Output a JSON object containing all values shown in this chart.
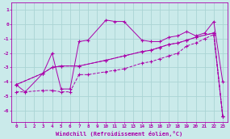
{
  "xlabel": "Windchill (Refroidissement éolien,°C)",
  "bg_color": "#caeaea",
  "line_color": "#aa00aa",
  "grid_color": "#aad4d4",
  "xlim": [
    -0.5,
    23.5
  ],
  "ylim": [
    -6.8,
    1.5
  ],
  "xticks": [
    0,
    1,
    2,
    3,
    4,
    5,
    6,
    7,
    8,
    9,
    10,
    11,
    12,
    13,
    14,
    15,
    16,
    17,
    18,
    19,
    20,
    21,
    22,
    23
  ],
  "yticks": [
    1,
    0,
    -1,
    -2,
    -3,
    -4,
    -5,
    -6
  ],
  "line1_x": [
    0,
    1,
    3,
    4,
    5,
    6,
    7,
    8,
    10,
    11,
    12,
    14,
    15,
    16,
    17,
    18,
    19,
    20,
    21,
    22,
    23
  ],
  "line1_y": [
    -4.2,
    -4.7,
    -3.4,
    -2.0,
    -4.5,
    -4.5,
    -1.2,
    -1.1,
    0.3,
    0.2,
    0.2,
    -1.1,
    -1.2,
    -1.2,
    -0.9,
    -0.8,
    -0.5,
    -0.8,
    -0.6,
    0.2,
    -4.0
  ],
  "line2_x": [
    0,
    3,
    4,
    5,
    7,
    10,
    12,
    14,
    15,
    16,
    17,
    18,
    19,
    20,
    22,
    23
  ],
  "line2_y": [
    -4.2,
    -3.4,
    -3.0,
    -2.9,
    -2.9,
    -2.5,
    -2.2,
    -1.9,
    -1.8,
    -1.6,
    -1.4,
    -1.3,
    -1.1,
    -0.9,
    -0.6,
    -6.4
  ],
  "line3_x": [
    0,
    3,
    4,
    5,
    7,
    10,
    12,
    14,
    15,
    16,
    17,
    18,
    19,
    20,
    22,
    23
  ],
  "line3_y": [
    -4.2,
    -3.4,
    -3.0,
    -2.9,
    -2.9,
    -2.5,
    -2.2,
    -1.9,
    -1.8,
    -1.6,
    -1.4,
    -1.3,
    -1.1,
    -0.9,
    -0.6,
    -6.4
  ],
  "line4_x": [
    0,
    1,
    3,
    4,
    5,
    6,
    7,
    8,
    10,
    11,
    12,
    14,
    15,
    16,
    17,
    18,
    19,
    20,
    21,
    22,
    23
  ],
  "line4_y": [
    -4.7,
    -4.7,
    -4.6,
    -4.6,
    -4.7,
    -4.7,
    -3.5,
    -3.5,
    -3.3,
    -3.2,
    -3.1,
    -2.7,
    -2.6,
    -2.4,
    -2.2,
    -2.0,
    -1.5,
    -1.3,
    -1.0,
    -0.7,
    -6.4
  ]
}
